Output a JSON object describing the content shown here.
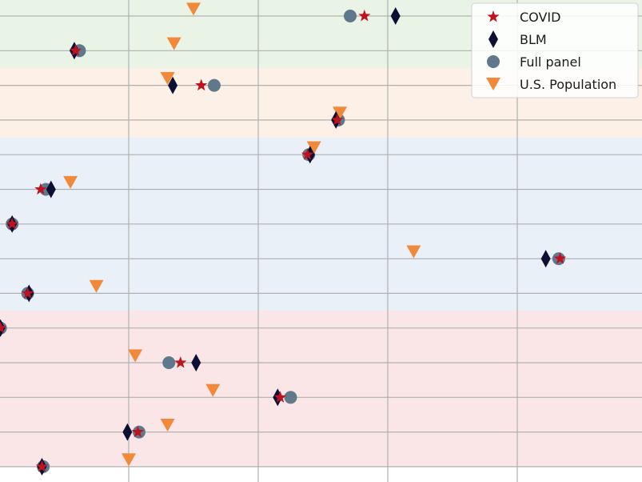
{
  "chart_data": {
    "type": "scatter",
    "grid": true,
    "legend_position": "top-right",
    "xlim": [
      0,
      5
    ],
    "ylim": [
      -0.5,
      13.5
    ],
    "y_direction": "top-to-bottom",
    "bands": [
      {
        "from": 0,
        "to": 2,
        "color": "#eaf4e6"
      },
      {
        "from": 2,
        "to": 4,
        "color": "#fdf0e6"
      },
      {
        "from": 4,
        "to": 9,
        "color": "#eaf0f8"
      },
      {
        "from": 9,
        "to": 13.5,
        "color": "#fae6e6"
      }
    ],
    "series": [
      {
        "name": "COVID",
        "marker": "star",
        "color": "#c0121e",
        "points": [
          {
            "x": 2.82,
            "y": 0
          },
          {
            "x": 0.59,
            "y": 1
          },
          {
            "x": 1.56,
            "y": 2
          },
          {
            "x": 2.61,
            "y": 3
          },
          {
            "x": 2.38,
            "y": 4
          },
          {
            "x": 0.32,
            "y": 5
          },
          {
            "x": 0.1,
            "y": 6
          },
          {
            "x": 4.33,
            "y": 7
          },
          {
            "x": 0.22,
            "y": 8
          },
          {
            "x": 0.01,
            "y": 9
          },
          {
            "x": 1.4,
            "y": 10
          },
          {
            "x": 2.17,
            "y": 11
          },
          {
            "x": 1.07,
            "y": 12
          },
          {
            "x": 0.33,
            "y": 13
          }
        ]
      },
      {
        "name": "BLM",
        "marker": "thin_diamond",
        "color": "#0d0f33",
        "points": [
          {
            "x": 3.06,
            "y": 0
          },
          {
            "x": 0.58,
            "y": 1
          },
          {
            "x": 1.34,
            "y": 2
          },
          {
            "x": 2.6,
            "y": 3
          },
          {
            "x": 2.4,
            "y": 4
          },
          {
            "x": 0.4,
            "y": 5
          },
          {
            "x": 0.1,
            "y": 6
          },
          {
            "x": 4.22,
            "y": 7
          },
          {
            "x": 0.23,
            "y": 8
          },
          {
            "x": 0.01,
            "y": 9
          },
          {
            "x": 1.52,
            "y": 10
          },
          {
            "x": 2.15,
            "y": 11
          },
          {
            "x": 0.99,
            "y": 12
          },
          {
            "x": 0.33,
            "y": 13
          }
        ]
      },
      {
        "name": "Full panel",
        "marker": "circle",
        "color": "#60788c",
        "points": [
          {
            "x": 2.71,
            "y": 0
          },
          {
            "x": 0.62,
            "y": 1
          },
          {
            "x": 1.66,
            "y": 2
          },
          {
            "x": 2.62,
            "y": 3
          },
          {
            "x": 2.39,
            "y": 4
          },
          {
            "x": 0.36,
            "y": 5
          },
          {
            "x": 0.1,
            "y": 6
          },
          {
            "x": 4.32,
            "y": 7
          },
          {
            "x": 0.22,
            "y": 8
          },
          {
            "x": 0.01,
            "y": 9
          },
          {
            "x": 1.31,
            "y": 10
          },
          {
            "x": 2.25,
            "y": 11
          },
          {
            "x": 1.08,
            "y": 12
          },
          {
            "x": 0.34,
            "y": 13
          }
        ]
      },
      {
        "name": "U.S. Population",
        "marker": "triangle_down",
        "color": "#f08a3a",
        "points": [
          {
            "x": 1.5,
            "y": -0.2
          },
          {
            "x": 1.35,
            "y": 0.8
          },
          {
            "x": 1.3,
            "y": 1.8
          },
          {
            "x": 2.63,
            "y": 2.8
          },
          {
            "x": 2.43,
            "y": 3.8
          },
          {
            "x": 0.55,
            "y": 4.8
          },
          {
            "x": 3.2,
            "y": 6.8
          },
          {
            "x": 0.75,
            "y": 7.8
          },
          {
            "x": 1.05,
            "y": 9.8
          },
          {
            "x": 1.65,
            "y": 10.8
          },
          {
            "x": 1.3,
            "y": 11.8
          },
          {
            "x": 1.0,
            "y": 12.8
          }
        ]
      }
    ]
  }
}
